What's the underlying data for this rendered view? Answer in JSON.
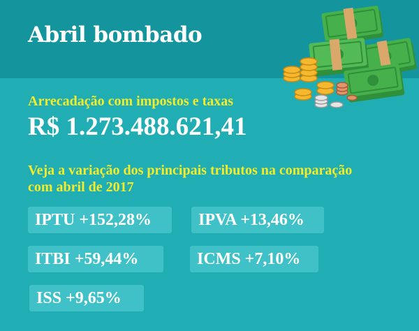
{
  "header": {
    "title": "Abril bombado"
  },
  "revenue": {
    "label": "Arrecadação com impostos e taxas",
    "amount": "R$ 1.273.488.621,41"
  },
  "intro": "Veja a variação dos principais tributos na comparação com abril de 2017",
  "taxes": [
    {
      "label": "IPTU +152,28%"
    },
    {
      "label": "IPVA +13,46%"
    },
    {
      "label": "ITBI +59,44%"
    },
    {
      "label": "ICMS +7,10%"
    },
    {
      "label": "ISS +9,65%"
    }
  ],
  "illustration": {
    "icon": "money-stack-coins-icon"
  },
  "colors": {
    "background": "#20adb3",
    "header": "#14959e",
    "highlight": "#f2ec2a",
    "pill": "#3fc1c7",
    "text": "#ffffff"
  }
}
